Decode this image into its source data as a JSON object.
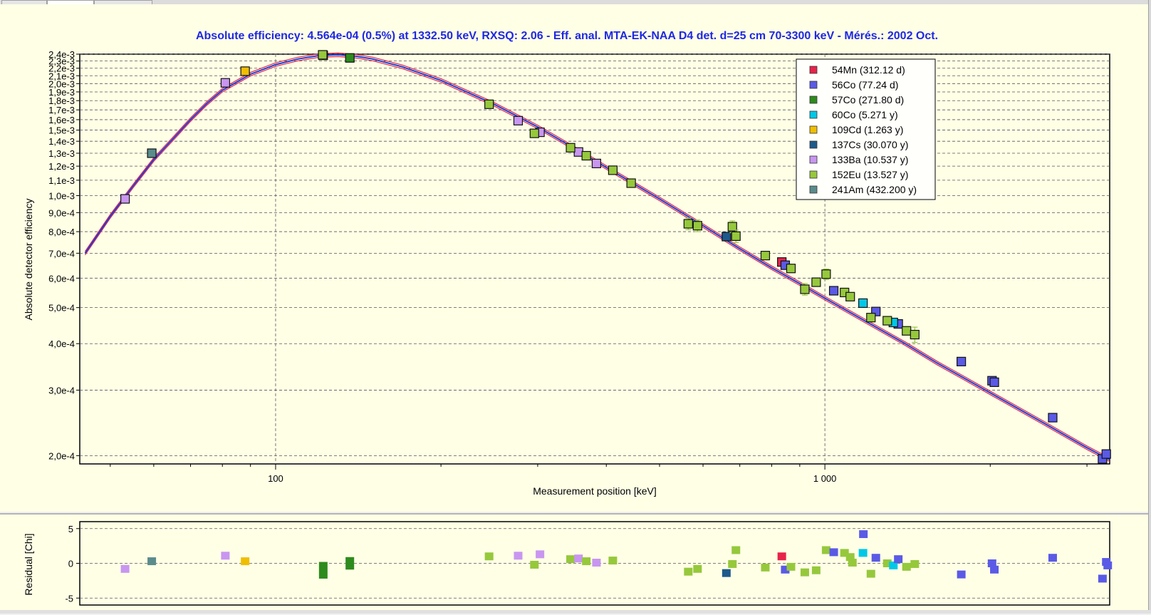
{
  "chart_data": [
    {
      "type": "scatter",
      "title": "Absolute efficiency: 4.564e-04 (0.5%) at 1332.50 keV, RXSQ: 2.06 - Eff. anal. MTA-EK-NAA D4 det. d=25 cm  70-3300 keV - Mérés.: 2002 Oct.",
      "xlabel": "Measurement position [keV]",
      "ylabel": "Absolute detector efficiency",
      "x_scale": "log",
      "y_scale": "log",
      "xlim": [
        44,
        3300
      ],
      "ylim": [
        0.00019,
        0.0024
      ],
      "x_ticks": [
        {
          "value": 100,
          "label": "100"
        },
        {
          "value": 1000,
          "label": "1 000"
        }
      ],
      "y_ticks": [
        {
          "value": 0.0024,
          "label": "2,4e-3"
        },
        {
          "value": 0.0023,
          "label": "2,3e-3"
        },
        {
          "value": 0.0022,
          "label": "2,2e-3"
        },
        {
          "value": 0.0021,
          "label": "2,1e-3"
        },
        {
          "value": 0.002,
          "label": "2,0e-3"
        },
        {
          "value": 0.0019,
          "label": "1,9e-3"
        },
        {
          "value": 0.0018,
          "label": "1,8e-3"
        },
        {
          "value": 0.0017,
          "label": "1,7e-3"
        },
        {
          "value": 0.0016,
          "label": "1,6e-3"
        },
        {
          "value": 0.0015,
          "label": "1,5e-3"
        },
        {
          "value": 0.0014,
          "label": "1,4e-3"
        },
        {
          "value": 0.0013,
          "label": "1,3e-3"
        },
        {
          "value": 0.0012,
          "label": "1,2e-3"
        },
        {
          "value": 0.0011,
          "label": "1,1e-3"
        },
        {
          "value": 0.001,
          "label": "1,0e-3"
        },
        {
          "value": 0.0009,
          "label": "9,0e-4"
        },
        {
          "value": 0.0008,
          "label": "8,0e-4"
        },
        {
          "value": 0.0007,
          "label": "7,0e-4"
        },
        {
          "value": 0.0006,
          "label": "6,0e-4"
        },
        {
          "value": 0.0005,
          "label": "5,0e-4"
        },
        {
          "value": 0.0004,
          "label": "4,0e-4"
        },
        {
          "value": 0.0003,
          "label": "3,0e-4"
        },
        {
          "value": 0.0002,
          "label": "2,0e-4"
        }
      ],
      "grid": true,
      "legend_position": "top-right",
      "curve": [
        [
          45,
          0.0007
        ],
        [
          50,
          0.00088
        ],
        [
          55,
          0.00106
        ],
        [
          60,
          0.00125
        ],
        [
          65,
          0.00142
        ],
        [
          70,
          0.0016
        ],
        [
          75,
          0.00177
        ],
        [
          80,
          0.00192
        ],
        [
          90,
          0.00212
        ],
        [
          100,
          0.00225
        ],
        [
          110,
          0.00233
        ],
        [
          120,
          0.00238
        ],
        [
          130,
          0.00239
        ],
        [
          140,
          0.00237
        ],
        [
          150,
          0.00233
        ],
        [
          170,
          0.00222
        ],
        [
          200,
          0.00204
        ],
        [
          250,
          0.00176
        ],
        [
          300,
          0.00153
        ],
        [
          350,
          0.00134
        ],
        [
          400,
          0.00119
        ],
        [
          500,
          0.00098
        ],
        [
          600,
          0.00083
        ],
        [
          700,
          0.00072
        ],
        [
          800,
          0.00064
        ],
        [
          900,
          0.00058
        ],
        [
          1000,
          0.00053
        ],
        [
          1200,
          0.000455
        ],
        [
          1400,
          0.0004
        ],
        [
          1600,
          0.000355
        ],
        [
          1800,
          0.000322
        ],
        [
          2000,
          0.000295
        ],
        [
          2500,
          0.000245
        ],
        [
          3000,
          0.00021
        ],
        [
          3300,
          0.000195
        ]
      ],
      "series": [
        {
          "name": "54Mn (312.12 d)",
          "color": "#e8234a",
          "points": [
            [
              834.8,
              0.000663,
              0
            ]
          ]
        },
        {
          "name": "56Co (77.24 d)",
          "color": "#5a5ae6",
          "points": [
            [
              846.8,
              0.00065,
              0
            ],
            [
              1037.8,
              0.000555,
              0
            ],
            [
              1238.3,
              0.000488,
              0
            ],
            [
              1360.2,
              0.000452,
              0
            ],
            [
              1771.4,
              0.000358,
              0
            ],
            [
              2015.2,
              0.000318,
              0
            ],
            [
              2034.8,
              0.000315,
              0
            ],
            [
              2598.5,
              0.000253,
              0
            ],
            [
              3201.9,
              0.000196,
              0
            ],
            [
              3253.4,
              0.000202,
              0
            ]
          ]
        },
        {
          "name": "57Co (271.80 d)",
          "color": "#2e8b1e",
          "points": [
            [
              122.1,
              0.002382,
              0
            ],
            [
              136.5,
              0.002345,
              0
            ]
          ]
        },
        {
          "name": "60Co (5.271 y)",
          "color": "#00c8e6",
          "points": [
            [
              1173.2,
              0.000514,
              0
            ],
            [
              1332.5,
              0.000456,
              0
            ]
          ]
        },
        {
          "name": "109Cd (1.263 y)",
          "color": "#f0be00",
          "points": [
            [
              88.0,
              0.00216,
              0
            ]
          ]
        },
        {
          "name": "137Cs (30.070 y)",
          "color": "#1e5a8c",
          "points": [
            [
              661.7,
              0.000776,
              0
            ]
          ]
        },
        {
          "name": "133Ba (10.537 y)",
          "color": "#c896f0",
          "points": [
            [
              53.2,
              0.00098,
              0
            ],
            [
              81.0,
              0.00201,
              0
            ],
            [
              276.4,
              0.00159,
              0
            ],
            [
              302.9,
              0.00148,
              0
            ],
            [
              356.0,
              0.00131,
              0
            ],
            [
              383.8,
              0.00122,
              0
            ]
          ]
        },
        {
          "name": "152Eu (13.527 y)",
          "color": "#96c83c",
          "points": [
            [
              121.8,
              0.00239,
              3e-05
            ],
            [
              244.7,
              0.00176,
              2e-05
            ],
            [
              295.9,
              0.00147,
              3e-05
            ],
            [
              344.3,
              0.001345,
              2e-05
            ],
            [
              367.8,
              0.00128,
              2e-05
            ],
            [
              411.1,
              0.00117,
              2e-05
            ],
            [
              443.9,
              0.00108,
              2e-05
            ],
            [
              564.0,
              0.00084,
              3e-05
            ],
            [
              586.3,
              0.00083,
              3e-05
            ],
            [
              678.6,
              0.000825,
              3e-05
            ],
            [
              688.7,
              0.000778,
              3e-05
            ],
            [
              778.9,
              0.00069,
              1e-05
            ],
            [
              867.4,
              0.000637,
              1e-05
            ],
            [
              919.3,
              0.00056,
              2e-05
            ],
            [
              964.1,
              0.000585,
              1e-05
            ],
            [
              1005.3,
              0.000615,
              2e-05
            ],
            [
              1085.8,
              0.000549,
              1e-05
            ],
            [
              1112.1,
              0.000535,
              1e-05
            ],
            [
              1212.9,
              0.00047,
              1e-05
            ],
            [
              1299.1,
              0.000461,
              1e-05
            ],
            [
              1408.0,
              0.000433,
              1e-05
            ],
            [
              1457.6,
              0.000423,
              2e-05
            ]
          ]
        },
        {
          "name": "241Am (432.200 y)",
          "color": "#5a8c8c",
          "points": [
            [
              59.5,
              0.0013,
              0
            ]
          ]
        }
      ]
    },
    {
      "type": "scatter",
      "ylabel": "Residual [Chi]",
      "x_scale": "log",
      "xlim": [
        44,
        3300
      ],
      "ylim": [
        -6,
        6
      ],
      "y_ticks": [
        {
          "value": 5,
          "label": "5"
        },
        {
          "value": 0,
          "label": "0"
        },
        {
          "value": -5,
          "label": "-5"
        }
      ],
      "grid": true,
      "points": [
        {
          "x": 53.2,
          "y": -0.8,
          "series": "133Ba (10.537 y)"
        },
        {
          "x": 59.5,
          "y": 0.3,
          "series": "241Am (432.200 y)"
        },
        {
          "x": 81.0,
          "y": 1.1,
          "series": "133Ba (10.537 y)"
        },
        {
          "x": 88.0,
          "y": 0.3,
          "series": "109Cd (1.263 y)"
        },
        {
          "x": 122.1,
          "y": -1.0,
          "series": "57Co (271.80 d)",
          "h": 2.4
        },
        {
          "x": 136.5,
          "y": 0.0,
          "series": "57Co (271.80 d)",
          "h": 1.8
        },
        {
          "x": 244.7,
          "y": 1.0,
          "series": "152Eu (13.527 y)"
        },
        {
          "x": 276.4,
          "y": 1.1,
          "series": "133Ba (10.537 y)"
        },
        {
          "x": 295.9,
          "y": -0.2,
          "series": "152Eu (13.527 y)"
        },
        {
          "x": 302.9,
          "y": 1.3,
          "series": "133Ba (10.537 y)"
        },
        {
          "x": 344.3,
          "y": 0.6,
          "series": "152Eu (13.527 y)"
        },
        {
          "x": 356.0,
          "y": 0.7,
          "series": "133Ba (10.537 y)"
        },
        {
          "x": 367.8,
          "y": 0.3,
          "series": "152Eu (13.527 y)"
        },
        {
          "x": 383.8,
          "y": 0.1,
          "series": "133Ba (10.537 y)"
        },
        {
          "x": 411.1,
          "y": 0.4,
          "series": "152Eu (13.527 y)"
        },
        {
          "x": 564.0,
          "y": -1.2,
          "series": "152Eu (13.527 y)"
        },
        {
          "x": 586.3,
          "y": -0.8,
          "series": "152Eu (13.527 y)"
        },
        {
          "x": 661.7,
          "y": -1.4,
          "series": "137Cs (30.070 y)"
        },
        {
          "x": 678.6,
          "y": -0.1,
          "series": "152Eu (13.527 y)"
        },
        {
          "x": 688.7,
          "y": 1.9,
          "series": "152Eu (13.527 y)"
        },
        {
          "x": 778.9,
          "y": -0.6,
          "series": "152Eu (13.527 y)"
        },
        {
          "x": 834.8,
          "y": 1.0,
          "series": "54Mn (312.12 d)"
        },
        {
          "x": 846.8,
          "y": -0.9,
          "series": "56Co (77.24 d)"
        },
        {
          "x": 867.4,
          "y": -0.5,
          "series": "152Eu (13.527 y)"
        },
        {
          "x": 919.3,
          "y": -1.3,
          "series": "152Eu (13.527 y)"
        },
        {
          "x": 964.1,
          "y": -1.0,
          "series": "152Eu (13.527 y)"
        },
        {
          "x": 1005.3,
          "y": 1.9,
          "series": "152Eu (13.527 y)"
        },
        {
          "x": 1037.8,
          "y": 1.6,
          "series": "56Co (77.24 d)"
        },
        {
          "x": 1085.8,
          "y": 1.5,
          "series": "152Eu (13.527 y)"
        },
        {
          "x": 1112.1,
          "y": 0.9,
          "series": "152Eu (13.527 y)"
        },
        {
          "x": 1122.3,
          "y": 0.1,
          "series": "152Eu (13.527 y)"
        },
        {
          "x": 1173.2,
          "y": 1.5,
          "series": "60Co (5.271 y)"
        },
        {
          "x": 1175.1,
          "y": 4.2,
          "series": "56Co (77.24 d)"
        },
        {
          "x": 1212.9,
          "y": -1.5,
          "series": "152Eu (13.527 y)"
        },
        {
          "x": 1238.3,
          "y": 0.8,
          "series": "56Co (77.24 d)"
        },
        {
          "x": 1299.1,
          "y": 0.0,
          "series": "152Eu (13.527 y)"
        },
        {
          "x": 1332.5,
          "y": -0.3,
          "series": "60Co (5.271 y)"
        },
        {
          "x": 1360.2,
          "y": 0.6,
          "series": "56Co (77.24 d)"
        },
        {
          "x": 1408.0,
          "y": -0.5,
          "series": "152Eu (13.527 y)"
        },
        {
          "x": 1457.6,
          "y": -0.1,
          "series": "152Eu (13.527 y)"
        },
        {
          "x": 1771.4,
          "y": -1.6,
          "series": "56Co (77.24 d)"
        },
        {
          "x": 2015.2,
          "y": 0.0,
          "series": "56Co (77.24 d)"
        },
        {
          "x": 2034.8,
          "y": -0.9,
          "series": "56Co (77.24 d)"
        },
        {
          "x": 2598.5,
          "y": 0.8,
          "series": "56Co (77.24 d)"
        },
        {
          "x": 3201.9,
          "y": -2.2,
          "series": "56Co (77.24 d)"
        },
        {
          "x": 3253.4,
          "y": 0.2,
          "series": "56Co (77.24 d)"
        },
        {
          "x": 3273.0,
          "y": -0.3,
          "series": "56Co (77.24 d)"
        }
      ]
    }
  ]
}
